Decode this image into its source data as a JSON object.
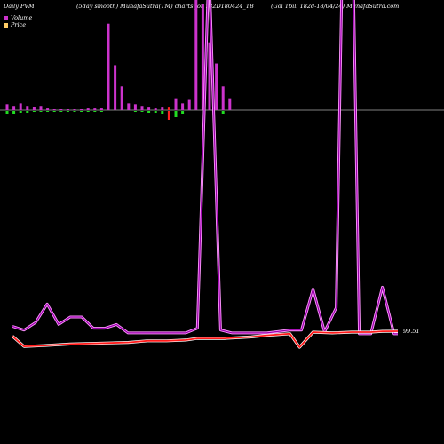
{
  "header": {
    "left": "Daily PVM",
    "mid": "(5day smooth) MunafaSutra(TM) charts for 782D180424_TB",
    "right": "(Goi  Tbill 182d-18/04/24) MunafaSutra.com"
  },
  "legend": [
    {
      "label": "Volume",
      "color": "#cc33cc"
    },
    {
      "label": "Price",
      "color": "#ffcc66"
    }
  ],
  "colors": {
    "volume_up": "#cc33cc",
    "volume_down_red": "#ff2020",
    "volume_down_green": "#22dd22",
    "volume_line_outer": "#ff99ff",
    "volume_line_inner": "#9900aa",
    "price_line": "#ff1a1a",
    "baseline": "#aaaaaa"
  },
  "price_label": "99.51",
  "chart_data": {
    "type": "bar+line",
    "bars": [
      {
        "v": 7,
        "c": "up",
        "d": 3
      },
      {
        "v": 5,
        "c": "up",
        "d": 3
      },
      {
        "v": 8,
        "c": "up",
        "d": 2
      },
      {
        "v": 5,
        "c": "up",
        "d": 2
      },
      {
        "v": 4,
        "c": "up",
        "d": 1
      },
      {
        "v": 5,
        "c": "up",
        "d": 1
      },
      {
        "v": 2,
        "c": "up",
        "d": 1
      },
      {
        "v": 1,
        "c": "up",
        "d": 1
      },
      {
        "v": 1,
        "c": "up",
        "d": 1
      },
      {
        "v": 1,
        "c": "up",
        "d": 1
      },
      {
        "v": 1,
        "c": "up",
        "d": 1
      },
      {
        "v": 1,
        "c": "up",
        "d": 1
      },
      {
        "v": 2,
        "c": "up",
        "d": 1
      },
      {
        "v": 2,
        "c": "up",
        "d": 1
      },
      {
        "v": 2,
        "c": "up",
        "d": 1
      },
      {
        "v": 102,
        "c": "up",
        "d": 0
      },
      {
        "v": 53,
        "c": "up",
        "d": 0
      },
      {
        "v": 28,
        "c": "up",
        "d": 0
      },
      {
        "v": 8,
        "c": "up",
        "d": 0
      },
      {
        "v": 7,
        "c": "up",
        "d": 1
      },
      {
        "v": 5,
        "c": "up",
        "d": 1
      },
      {
        "v": 3,
        "c": "up",
        "d": 2
      },
      {
        "v": 2,
        "c": "up",
        "d": 2
      },
      {
        "v": 3,
        "c": "up",
        "d": 3
      },
      {
        "v": 3,
        "c": "down_red",
        "d": 10
      },
      {
        "v": 14,
        "c": "up",
        "d": 7
      },
      {
        "v": 8,
        "c": "up",
        "d": 3
      },
      {
        "v": 12,
        "c": "up",
        "d": 0
      },
      {
        "v": 130,
        "c": "up",
        "d": 0
      },
      {
        "v": 125,
        "c": "up",
        "d": 0
      },
      {
        "v": 80,
        "c": "up",
        "d": 0
      },
      {
        "v": 55,
        "c": "up",
        "d": 0
      },
      {
        "v": 28,
        "c": "up",
        "d": 3
      },
      {
        "v": 14,
        "c": "up",
        "d": 0
      }
    ],
    "volume_line": [
      {
        "x": 0,
        "y": 10
      },
      {
        "x": 0.03,
        "y": 6
      },
      {
        "x": 0.06,
        "y": 14
      },
      {
        "x": 0.09,
        "y": 34
      },
      {
        "x": 0.12,
        "y": 12
      },
      {
        "x": 0.15,
        "y": 20
      },
      {
        "x": 0.18,
        "y": 20
      },
      {
        "x": 0.21,
        "y": 8
      },
      {
        "x": 0.24,
        "y": 8
      },
      {
        "x": 0.27,
        "y": 12
      },
      {
        "x": 0.3,
        "y": 3
      },
      {
        "x": 0.35,
        "y": 3
      },
      {
        "x": 0.4,
        "y": 3
      },
      {
        "x": 0.45,
        "y": 3
      },
      {
        "x": 0.48,
        "y": 8
      },
      {
        "x": 0.51,
        "y": 400
      },
      {
        "x": 0.54,
        "y": 6
      },
      {
        "x": 0.57,
        "y": 3
      },
      {
        "x": 0.6,
        "y": 3
      },
      {
        "x": 0.66,
        "y": 3
      },
      {
        "x": 0.72,
        "y": 6
      },
      {
        "x": 0.75,
        "y": 6
      },
      {
        "x": 0.78,
        "y": 50
      },
      {
        "x": 0.81,
        "y": 4
      },
      {
        "x": 0.84,
        "y": 30
      },
      {
        "x": 0.86,
        "y": 500
      },
      {
        "x": 0.88,
        "y": 500
      },
      {
        "x": 0.9,
        "y": 2
      },
      {
        "x": 0.93,
        "y": 2
      },
      {
        "x": 0.96,
        "y": 52
      },
      {
        "x": 0.99,
        "y": 2
      },
      {
        "x": 1.0,
        "y": 2
      }
    ],
    "price_line": [
      {
        "x": 0,
        "y": 98.9
      },
      {
        "x": 0.03,
        "y": 97.6
      },
      {
        "x": 0.08,
        "y": 97.7
      },
      {
        "x": 0.15,
        "y": 97.9
      },
      {
        "x": 0.3,
        "y": 98.1
      },
      {
        "x": 0.35,
        "y": 98.3
      },
      {
        "x": 0.4,
        "y": 98.3
      },
      {
        "x": 0.45,
        "y": 98.4
      },
      {
        "x": 0.48,
        "y": 98.6
      },
      {
        "x": 0.55,
        "y": 98.6
      },
      {
        "x": 0.62,
        "y": 98.8
      },
      {
        "x": 0.66,
        "y": 99.0
      },
      {
        "x": 0.72,
        "y": 99.2
      },
      {
        "x": 0.745,
        "y": 97.5
      },
      {
        "x": 0.78,
        "y": 99.4
      },
      {
        "x": 0.83,
        "y": 99.3
      },
      {
        "x": 0.88,
        "y": 99.4
      },
      {
        "x": 0.93,
        "y": 99.4
      },
      {
        "x": 0.96,
        "y": 99.5
      },
      {
        "x": 1.0,
        "y": 99.51
      }
    ]
  }
}
